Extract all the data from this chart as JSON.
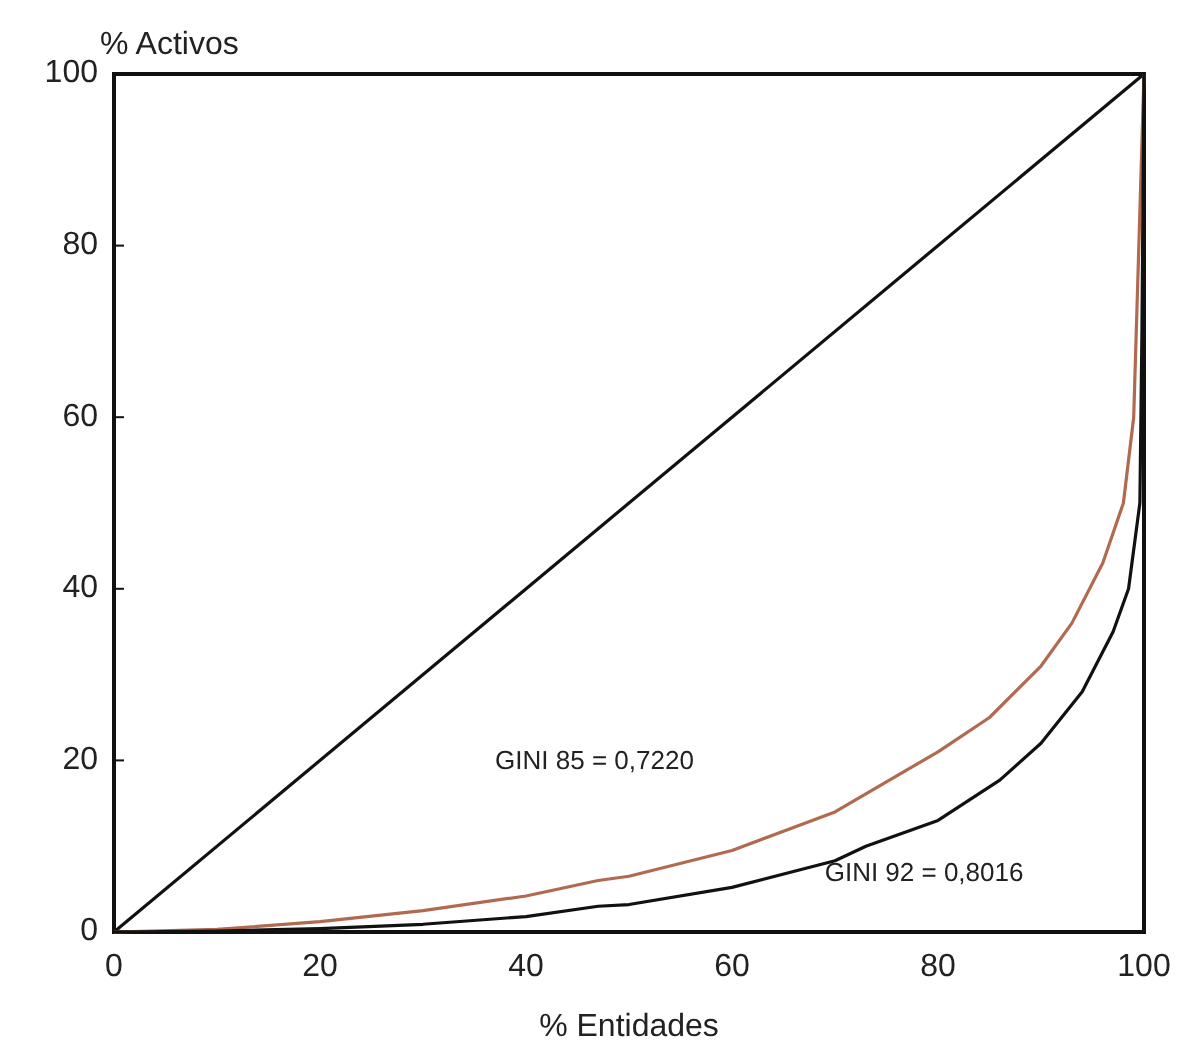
{
  "chart_data": {
    "type": "line",
    "xlabel": "% Entidades",
    "ylabel": "% Activos",
    "xlim": [
      0,
      100
    ],
    "ylim": [
      0,
      100
    ],
    "xticks": [
      0,
      20,
      40,
      60,
      80,
      100
    ],
    "yticks": [
      0,
      20,
      40,
      60,
      80,
      100
    ],
    "grid": false,
    "marker": "none",
    "line_style": "solid",
    "series": [
      {
        "color": "#111111",
        "x": [
          0,
          100
        ],
        "values": [
          0,
          100
        ]
      },
      {
        "color": "#b06a50",
        "x": [
          0,
          10,
          20,
          30,
          40,
          47,
          50,
          60,
          70,
          80,
          85,
          90,
          93,
          96,
          98,
          99,
          100
        ],
        "values": [
          0,
          0.3,
          1.2,
          2.5,
          4.2,
          6,
          6.5,
          9.5,
          14,
          21,
          25,
          31,
          36,
          43,
          50,
          60,
          100
        ]
      },
      {
        "color": "#111111",
        "x": [
          0,
          10,
          20,
          30,
          40,
          47,
          50,
          60,
          70,
          73,
          80,
          86,
          90,
          94,
          97,
          98.5,
          99.6,
          99.8,
          100
        ],
        "values": [
          0,
          0.1,
          0.4,
          0.9,
          1.8,
          3,
          3.2,
          5.2,
          8.3,
          10,
          13,
          17.7,
          22,
          28,
          35,
          40,
          50,
          70,
          100
        ]
      }
    ],
    "annotations": [
      "GINI 85 = 0,7220",
      "GINI 92 = 0,8016"
    ]
  }
}
